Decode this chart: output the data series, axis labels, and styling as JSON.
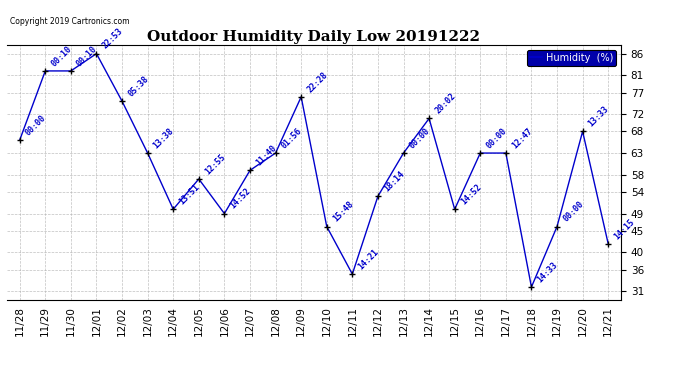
{
  "title": "Outdoor Humidity Daily Low 20191222",
  "copyright_text": "Copyright 2019 Cartronics.com",
  "legend_label": "Humidity  (%)",
  "dates": [
    "11/28",
    "11/29",
    "11/30",
    "12/01",
    "12/02",
    "12/03",
    "12/04",
    "12/05",
    "12/06",
    "12/07",
    "12/08",
    "12/09",
    "12/10",
    "12/11",
    "12/12",
    "12/13",
    "12/14",
    "12/15",
    "12/16",
    "12/17",
    "12/18",
    "12/19",
    "12/20",
    "12/21"
  ],
  "values": [
    66,
    82,
    82,
    86,
    75,
    63,
    50,
    57,
    49,
    59,
    63,
    76,
    46,
    35,
    53,
    63,
    71,
    50,
    63,
    63,
    32,
    46,
    68,
    42
  ],
  "time_labels": [
    "00:00",
    "00:10",
    "00:10",
    "22:53",
    "05:38",
    "13:38",
    "13:51",
    "12:55",
    "14:52",
    "11:40",
    "01:56",
    "22:28",
    "15:48",
    "14:21",
    "18:14",
    "00:00",
    "20:02",
    "14:52",
    "00:00",
    "12:47",
    "14:33",
    "00:00",
    "13:33",
    "14:15"
  ],
  "ylim": [
    29,
    88
  ],
  "yticks": [
    31,
    36,
    40,
    45,
    49,
    54,
    58,
    63,
    68,
    72,
    77,
    81,
    86
  ],
  "line_color": "#0000cc",
  "background_color": "#ffffff",
  "grid_color": "#b0b0b0",
  "title_fontsize": 11,
  "tick_fontsize": 7.5,
  "annot_fontsize": 6,
  "legend_bg": "#0000aa",
  "legend_fg": "#ffffff"
}
